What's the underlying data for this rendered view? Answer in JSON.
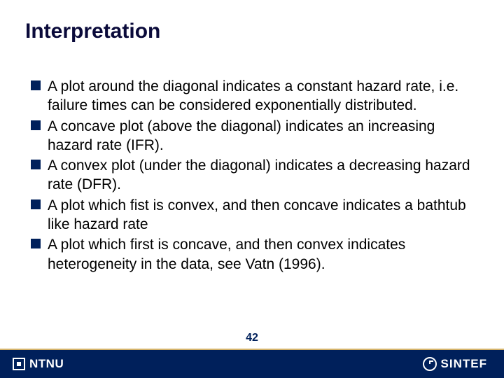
{
  "title": {
    "text": "Interpretation",
    "fontsize": 30,
    "color": "#0a0a3a"
  },
  "bullets": {
    "marker_color": "#00205b",
    "text_color": "#000000",
    "fontsize": 21,
    "items": [
      "A plot around the diagonal indicates a constant hazard rate, i.e. failure times can be considered exponentially distributed.",
      "A concave plot (above the diagonal) indicates an increasing hazard rate (IFR).",
      "A convex plot (under the diagonal) indicates a decreasing hazard rate (DFR).",
      "A plot which fist is convex, and then concave indicates a bathtub like hazard rate",
      "A plot which first is concave, and then convex indicates heterogeneity in the data, see Vatn (1996)."
    ]
  },
  "page_number": {
    "value": "42",
    "color": "#00205b",
    "fontsize": 16
  },
  "footer": {
    "bar_color": "#00205b",
    "line_color": "#d5b36a",
    "left_logo_text": "NTNU",
    "right_logo_text": "SINTEF",
    "logo_fontsize": 17
  }
}
